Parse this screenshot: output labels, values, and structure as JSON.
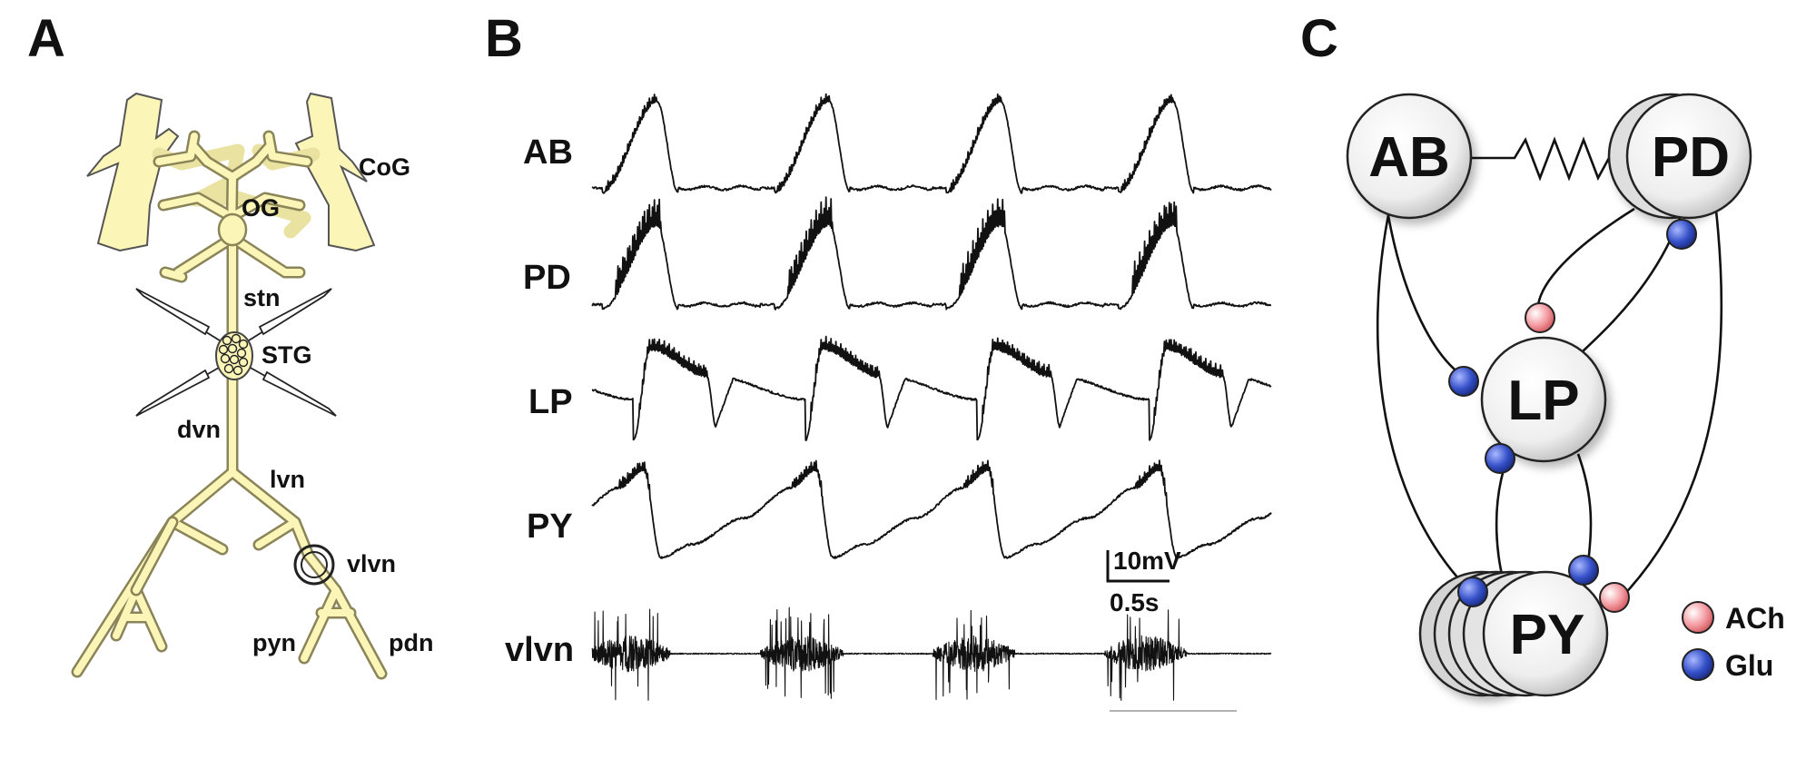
{
  "panels": {
    "a": "A",
    "b": "B",
    "c": "C"
  },
  "panel_a": {
    "labels": {
      "cog": "CoG",
      "og": "OG",
      "stn": "stn",
      "stg": "STG",
      "dvn": "dvn",
      "lvn": "lvn",
      "vlvn": "vlvn",
      "pyn": "pyn",
      "pdn": "pdn"
    },
    "colors": {
      "nerve": "#fbf5b7",
      "outline": "#555555"
    }
  },
  "panel_b": {
    "traces": {
      "ab": "AB",
      "pd": "PD",
      "lp": "LP",
      "py": "PY",
      "vlvn": "vlvn"
    },
    "scale": {
      "voltage": "10mV",
      "time": "0.5s"
    }
  },
  "panel_c": {
    "cells": {
      "ab": "AB",
      "pd": "PD",
      "lp": "LP",
      "py": "PY"
    },
    "legend": {
      "ach": "ACh",
      "glu": "Glu"
    },
    "colors": {
      "ach": "#f39aa0",
      "glu": "#3550c8",
      "cell": "#f4f4f4"
    }
  }
}
